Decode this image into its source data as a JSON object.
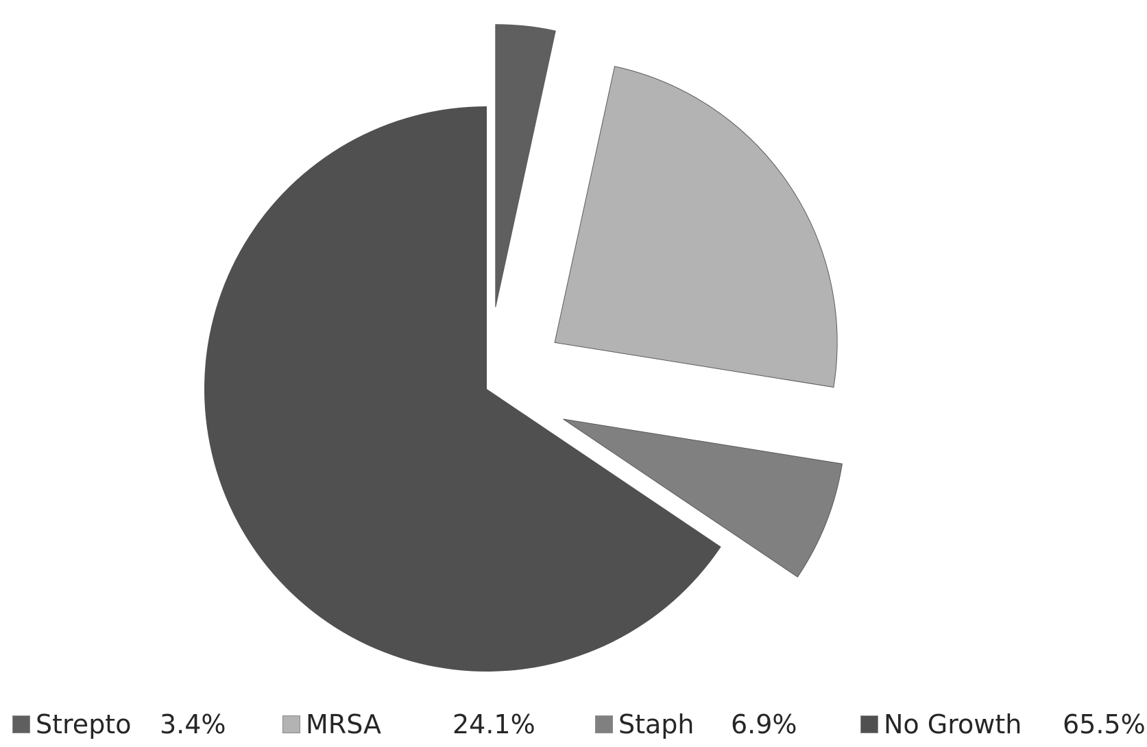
{
  "chart_data": {
    "type": "pie",
    "slices": [
      {
        "label": "Strepto",
        "value_text": "3.4%",
        "value": 3.4,
        "color": "#5f5f5f",
        "exploded": true
      },
      {
        "label": "MRSA",
        "value_text": "24.1%",
        "value": 24.1,
        "color": "#b3b3b3",
        "exploded": true
      },
      {
        "label": "Staph",
        "value_text": "6.9%",
        "value": 6.9,
        "color": "#808080",
        "exploded": true
      },
      {
        "label": "No Growth",
        "value_text": "65.5%",
        "value": 65.5,
        "color": "#505050",
        "exploded": false
      }
    ],
    "start_angle": "12 o'clock",
    "direction": "clockwise",
    "legend": {
      "position": "bottom"
    }
  }
}
